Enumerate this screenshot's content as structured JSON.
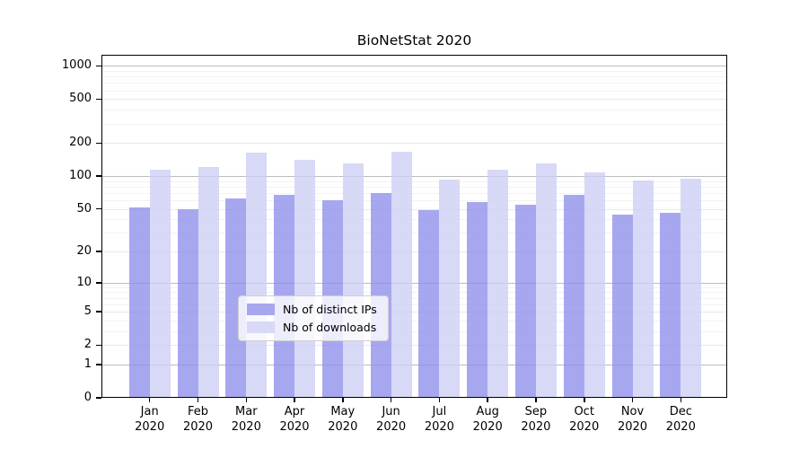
{
  "chart_data": {
    "type": "bar",
    "title": "BioNetStat 2020",
    "categories": [
      "Jan 2020",
      "Feb 2020",
      "Mar 2020",
      "Apr 2020",
      "May 2020",
      "Jun 2020",
      "Jul 2020",
      "Aug 2020",
      "Sep 2020",
      "Oct 2020",
      "Nov 2020",
      "Dec 2020"
    ],
    "series": [
      {
        "name": "Nb of distinct IPs",
        "color": "rgba(142,142,236,0.78)",
        "solid_color": "#a7a7f0",
        "values": [
          52,
          50,
          62,
          68,
          60,
          70,
          49,
          58,
          55,
          68,
          44,
          46
        ]
      },
      {
        "name": "Nb of downloads",
        "color": "rgba(205,205,245,0.78)",
        "solid_color": "#d8d8f7",
        "values": [
          115,
          121,
          165,
          141,
          130,
          167,
          93,
          115,
          130,
          108,
          91,
          95
        ]
      }
    ],
    "xlabel": "",
    "ylabel": "",
    "yscale": "log1p",
    "ylim": [
      0,
      1260
    ],
    "yticks": [
      0,
      1,
      2,
      5,
      10,
      20,
      50,
      100,
      200,
      500,
      1000
    ],
    "minor_yticks": [
      3,
      4,
      6,
      7,
      8,
      9,
      30,
      40,
      60,
      70,
      80,
      90,
      300,
      400,
      600,
      700,
      800,
      900
    ],
    "grid": "horizontal",
    "legend_position": "lower center",
    "colors": {
      "background": "#ffffff",
      "spine": "#000000",
      "grid_major": "#bcbcbc",
      "grid_labeled": "#e9e9e9",
      "grid_minor": "#f3f3f3"
    }
  }
}
